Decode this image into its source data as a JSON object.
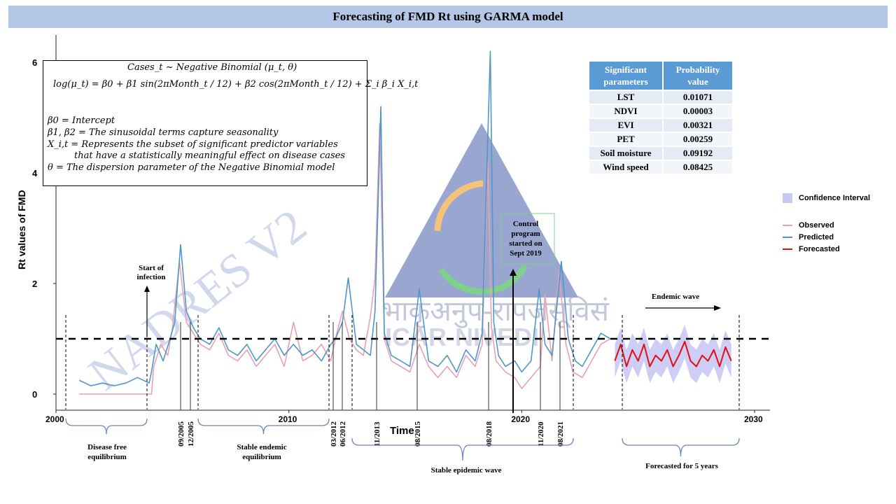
{
  "title": "Forecasting of FMD Rt using GARMA model",
  "equation": {
    "line1": "Cases_t ~ Negative Binomial (μ_t, θ)",
    "line2": "log(μ_t) = β0 + β1 sin(2πMonth_t / 12) + β2 cos(2πMonth_t / 12) + Σ_i β_i X_i,t",
    "def_b0": "β0 = Intercept",
    "def_b12": "β1, β2 = The sinusoidal terms capture seasonality",
    "def_x": "X_i,t = Represents the subset of significant predictor variables",
    "def_x2": "that have a statistically meaningful effect on disease cases",
    "def_theta": "θ = The dispersion parameter of the Negative Binomial model"
  },
  "table": {
    "headers": [
      "Significant parameters",
      "Probability value"
    ],
    "rows": [
      [
        "LST",
        "0.01071"
      ],
      [
        "NDVI",
        "0.00003"
      ],
      [
        "EVI",
        "0.00321"
      ],
      [
        "PET",
        "0.00259"
      ],
      [
        "Soil moisture",
        "0.09192"
      ],
      [
        "Wind speed",
        "0.08425"
      ]
    ]
  },
  "legend": {
    "ci": "Confidence Interval",
    "observed": "Observed",
    "predicted": "Predicted",
    "forecasted": "Forecasted"
  },
  "annotations": {
    "start_infection": "Start of infection",
    "control_program": "Control program started on Sept 2019",
    "endemic_wave": "Endemic wave",
    "phases": [
      "Disease free equilibrium",
      "Stable endemic equilibrium",
      "Stable epidemic wave",
      "Forecasted for 5 years"
    ],
    "event_dates": [
      "09/2005",
      "12/2005",
      "03/2012",
      "06/2012",
      "11/2013",
      "08/2015",
      "08/2018",
      "11/2020",
      "08/2021"
    ]
  },
  "watermark": {
    "text1": "NADRES V2",
    "text2": "भाकृअनुप-रापजसूविसं",
    "text3": "ICAR-NIVEDI"
  },
  "colors": {
    "observed": "#e8a0b4",
    "predicted": "#4f97c9",
    "forecasted": "#e01010",
    "ci": "#c8c8f5",
    "title_bar": "#b4c7e7",
    "table_header": "#5b9bd5"
  },
  "chart_data": {
    "type": "line",
    "xlabel": "Time",
    "ylabel": "Rt values of FMD",
    "xlim": [
      2000,
      2030
    ],
    "ylim": [
      0,
      6.5
    ],
    "x_ticks": [
      2000,
      2010,
      2020,
      2030
    ],
    "y_ticks": [
      0,
      2,
      4,
      6
    ],
    "threshold": 1,
    "series": [
      {
        "name": "Observed",
        "x": [
          2001,
          2004.1,
          2004.2,
          2004.5,
          2004.8,
          2005.0,
          2005.3,
          2005.6,
          2005.9,
          2006.2,
          2006.6,
          2007.0,
          2007.4,
          2007.8,
          2008.2,
          2008.6,
          2009.0,
          2009.4,
          2009.8,
          2010.2,
          2010.6,
          2011.0,
          2011.4,
          2011.8,
          2012.0,
          2012.3,
          2012.6,
          2012.9,
          2013.2,
          2013.5,
          2013.7,
          2013.9,
          2014.1,
          2014.4,
          2014.8,
          2015.2,
          2015.6,
          2016.0,
          2016.4,
          2016.8,
          2017.2,
          2017.6,
          2018.0,
          2018.3,
          2018.55,
          2018.7,
          2018.9,
          2019.3,
          2019.7,
          2020.0,
          2020.4,
          2020.8,
          2021.0,
          2021.3,
          2021.6,
          2021.9,
          2022.2,
          2022.6,
          2023.0,
          2023.4,
          2023.8
        ],
        "y": [
          0,
          0,
          0.5,
          0.9,
          0.7,
          1.2,
          2.4,
          1.3,
          1.1,
          0.9,
          0.8,
          1.1,
          0.7,
          0.6,
          0.8,
          0.5,
          0.7,
          0.9,
          0.5,
          1.3,
          0.6,
          0.7,
          0.9,
          0.6,
          1.0,
          1.5,
          1.0,
          0.8,
          0.7,
          1.4,
          2.1,
          4.9,
          1.0,
          0.6,
          0.5,
          0.4,
          0.9,
          0.5,
          0.3,
          0.5,
          0.3,
          0.7,
          0.5,
          0.9,
          4.2,
          1.2,
          0.6,
          0.4,
          0.3,
          0.1,
          0.3,
          0.5,
          1.8,
          0.6,
          2.2,
          0.9,
          0.4,
          0.3,
          0.6,
          0.9,
          1.0
        ]
      },
      {
        "name": "Predicted",
        "x": [
          2001,
          2001.5,
          2002,
          2002.5,
          2003,
          2003.5,
          2004,
          2004.1,
          2004.3,
          2004.6,
          2004.9,
          2005.1,
          2005.35,
          2005.6,
          2005.9,
          2006.2,
          2006.6,
          2007.0,
          2007.4,
          2007.8,
          2008.2,
          2008.6,
          2009.0,
          2009.4,
          2009.8,
          2010.2,
          2010.6,
          2011.0,
          2011.4,
          2011.8,
          2012.0,
          2012.3,
          2012.55,
          2012.9,
          2013.2,
          2013.5,
          2013.7,
          2013.95,
          2014.1,
          2014.4,
          2014.8,
          2015.2,
          2015.6,
          2016.0,
          2016.4,
          2016.8,
          2017.2,
          2017.6,
          2018.0,
          2018.3,
          2018.65,
          2018.8,
          2019.0,
          2019.3,
          2019.7,
          2020.0,
          2020.4,
          2020.75,
          2021.0,
          2021.3,
          2021.7,
          2022.0,
          2022.3,
          2022.6,
          2023.0,
          2023.4,
          2023.8
        ],
        "y": [
          0.25,
          0.15,
          0.2,
          0.15,
          0.2,
          0.3,
          0.2,
          0.4,
          0.9,
          0.6,
          1.0,
          1.3,
          2.7,
          1.5,
          1.2,
          1.0,
          0.9,
          1.2,
          0.8,
          0.7,
          0.9,
          0.6,
          0.8,
          1.0,
          0.7,
          0.9,
          0.7,
          0.8,
          0.6,
          0.9,
          1.0,
          1.3,
          2.1,
          0.9,
          0.8,
          0.7,
          1.5,
          5.2,
          1.1,
          0.7,
          0.6,
          0.5,
          1.9,
          0.6,
          0.5,
          0.7,
          0.4,
          0.8,
          0.6,
          1.1,
          6.2,
          1.3,
          0.7,
          0.5,
          0.6,
          0.4,
          0.6,
          1.9,
          0.9,
          0.7,
          2.4,
          1.0,
          0.6,
          0.5,
          0.8,
          1.1,
          1.0
        ]
      },
      {
        "name": "Forecasted",
        "x": [
          2024.0,
          2024.25,
          2024.5,
          2024.75,
          2025.0,
          2025.25,
          2025.5,
          2025.75,
          2026.0,
          2026.25,
          2026.5,
          2026.75,
          2027.0,
          2027.25,
          2027.5,
          2027.75,
          2028.0,
          2028.25,
          2028.5,
          2028.75,
          2029.0
        ],
        "y": [
          0.6,
          0.9,
          0.5,
          0.8,
          0.6,
          0.9,
          0.5,
          0.7,
          0.6,
          0.8,
          0.5,
          0.7,
          0.95,
          0.6,
          0.5,
          0.7,
          0.6,
          0.8,
          0.5,
          0.85,
          0.6
        ]
      }
    ]
  }
}
